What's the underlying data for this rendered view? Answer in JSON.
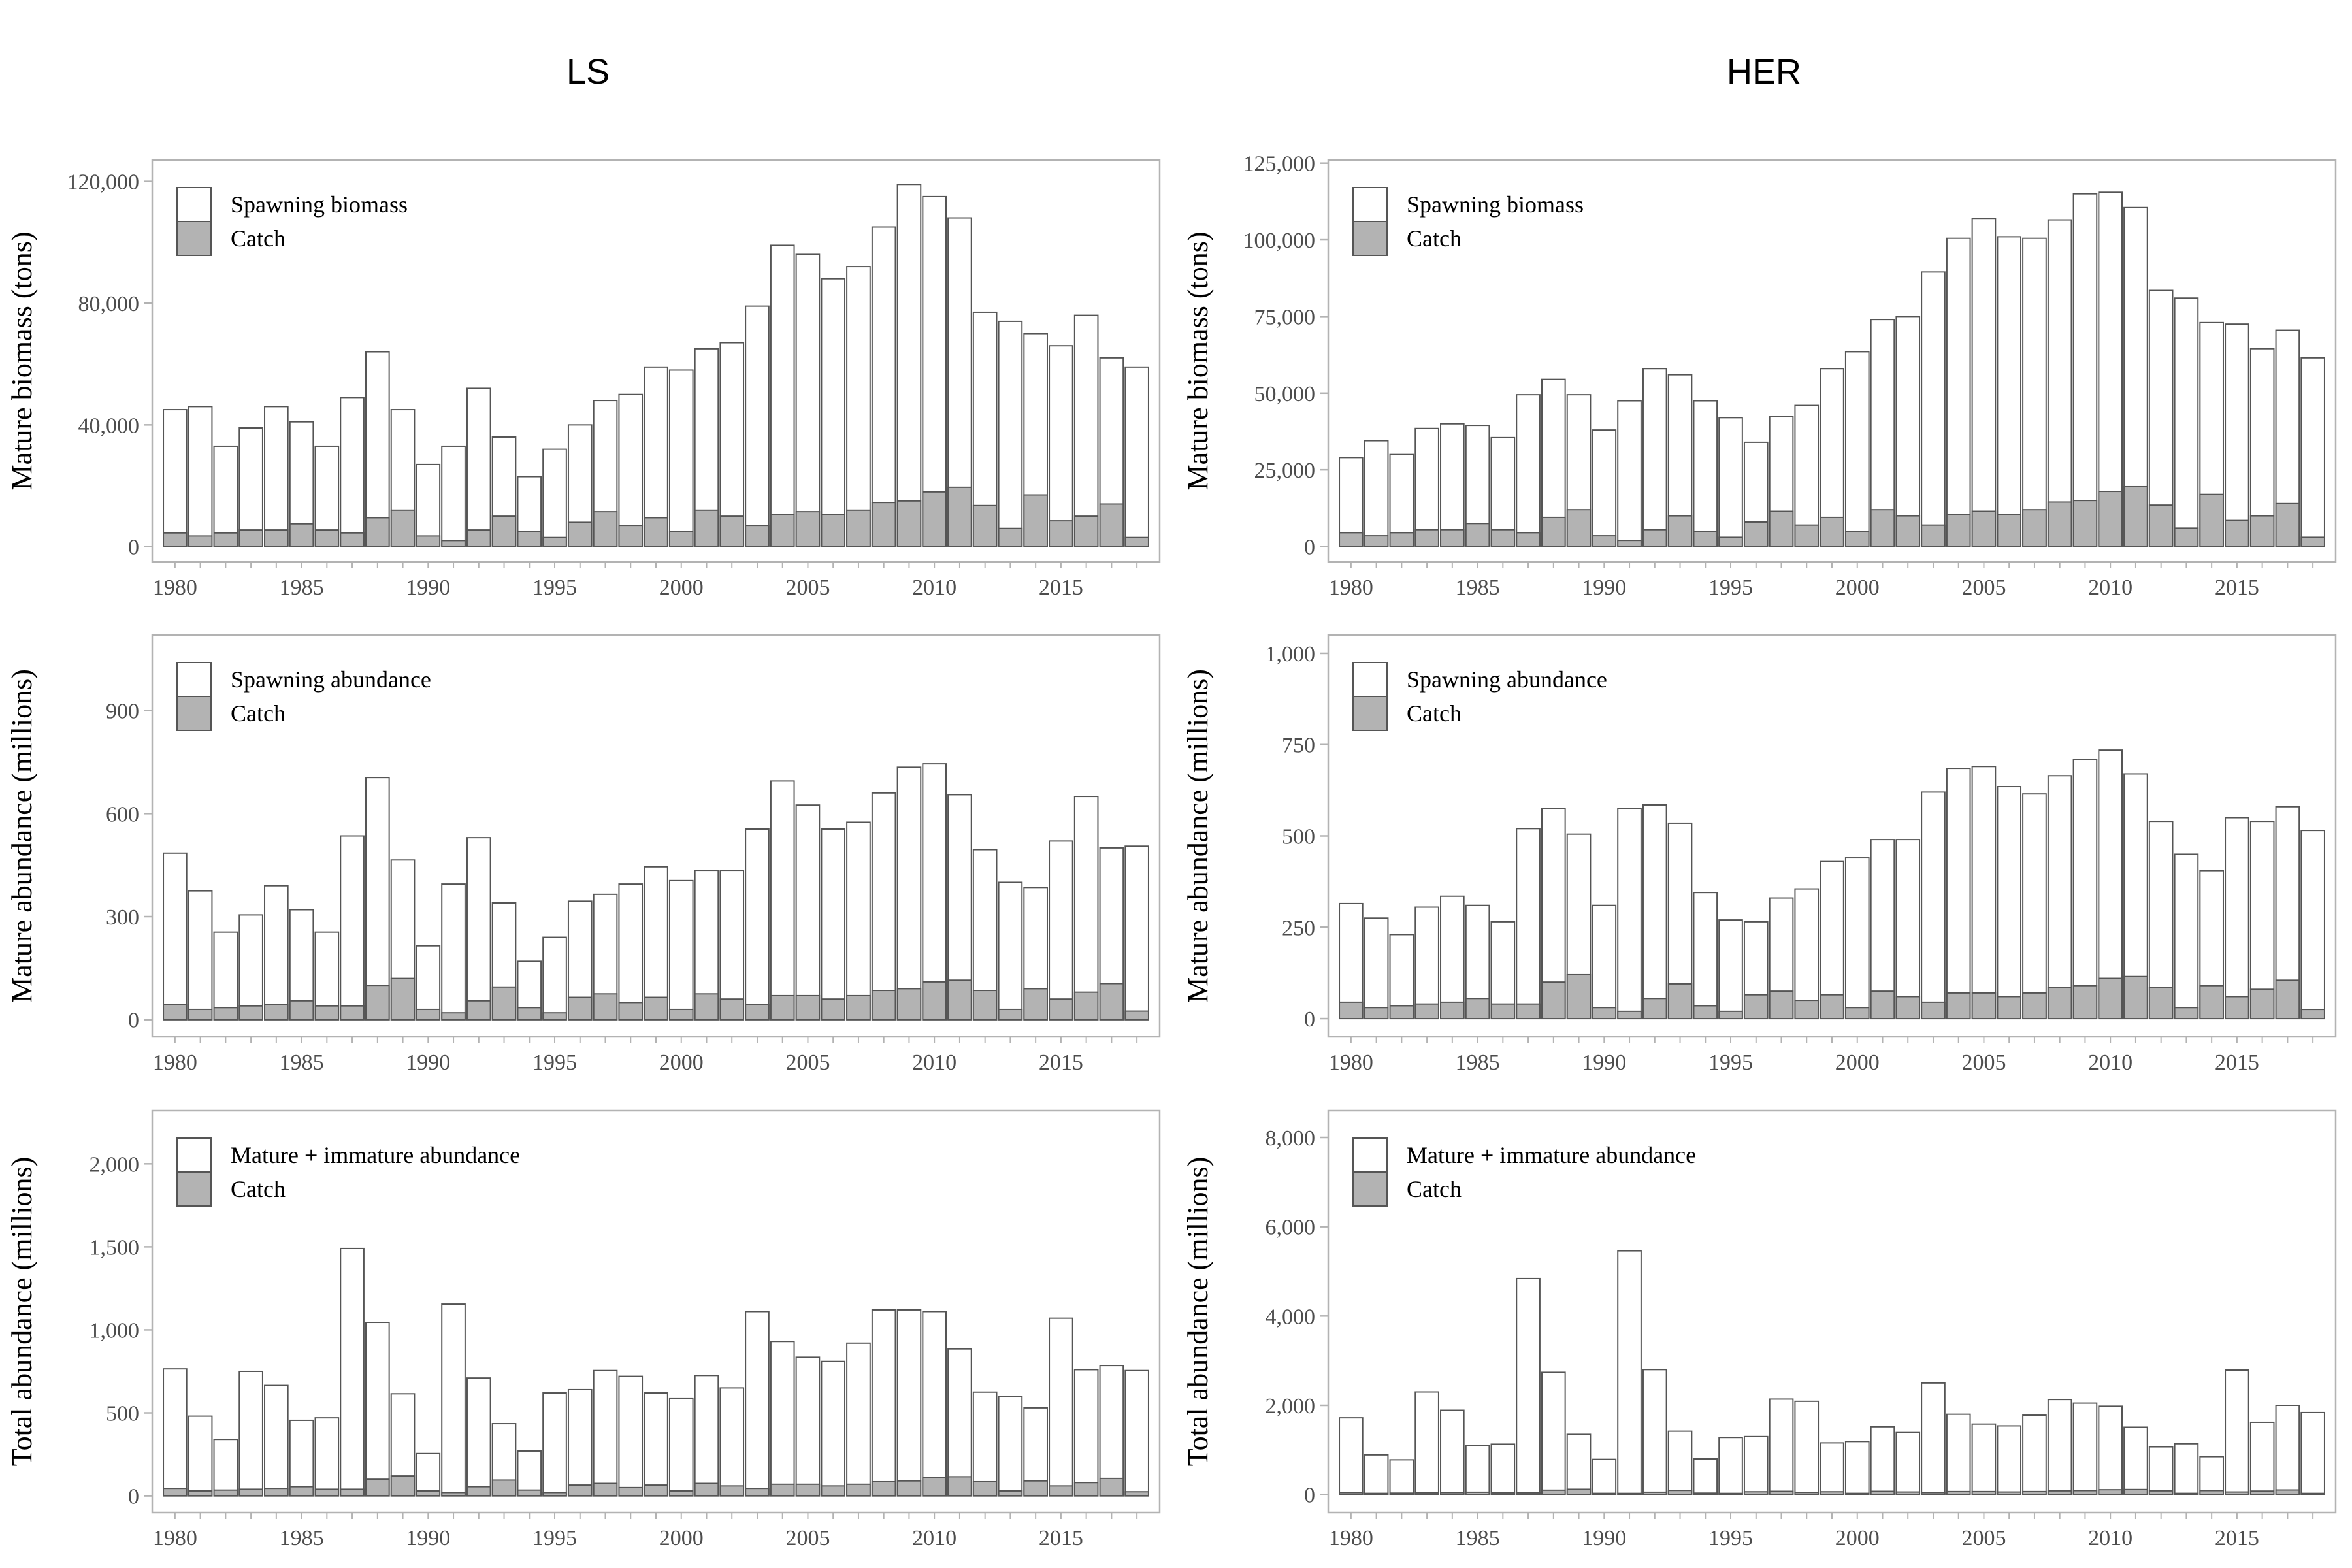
{
  "column_titles": [
    "LS",
    "HER"
  ],
  "colors": {
    "bar_fill": "#ffffff",
    "bar_stroke": "#555555",
    "catch_fill": "#b3b3b3",
    "panel_border": "#b3b3b3",
    "tick_text": "#4d4d4d"
  },
  "chart_data": [
    {
      "type": "bar",
      "panel": "LS-biomass",
      "title": "LS",
      "ylabel": "Mature biomass (tons)",
      "xlabel": "",
      "ylim": [
        -5000,
        127000
      ],
      "yticks": [
        0,
        40000,
        80000,
        120000
      ],
      "ytick_labels": [
        "0",
        "40,000",
        "80,000",
        "120,000"
      ],
      "xticks": [
        1980,
        1985,
        1990,
        1995,
        2000,
        2005,
        2010,
        2015
      ],
      "legend": [
        "Spawning biomass",
        "Catch"
      ],
      "legend_position": "top-left",
      "grid": false,
      "x": [
        1980,
        1981,
        1982,
        1983,
        1984,
        1985,
        1986,
        1987,
        1988,
        1989,
        1990,
        1991,
        1992,
        1993,
        1994,
        1995,
        1996,
        1997,
        1998,
        1999,
        2000,
        2001,
        2002,
        2003,
        2004,
        2005,
        2006,
        2007,
        2008,
        2009,
        2010,
        2011,
        2012,
        2013,
        2014,
        2015,
        2016,
        2017,
        2018
      ],
      "series": [
        {
          "name": "Spawning biomass",
          "values": [
            45000,
            46000,
            33000,
            39000,
            46000,
            41000,
            33000,
            49000,
            64000,
            45000,
            27000,
            33000,
            52000,
            36000,
            23000,
            32000,
            40000,
            48000,
            50000,
            59000,
            58000,
            65000,
            67000,
            79000,
            99000,
            96000,
            88000,
            92000,
            105000,
            119000,
            115000,
            108000,
            77000,
            74000,
            70000,
            66000,
            76000,
            62000,
            59000
          ]
        },
        {
          "name": "Catch",
          "values": [
            4500,
            3500,
            4500,
            5500,
            5500,
            7500,
            5500,
            4500,
            9500,
            12000,
            3500,
            2000,
            5500,
            10000,
            5000,
            3000,
            8000,
            11500,
            7000,
            9500,
            5000,
            12000,
            10000,
            7000,
            10500,
            11500,
            10500,
            12000,
            14500,
            15000,
            18000,
            19500,
            13500,
            6000,
            17000,
            8500,
            10000,
            14000,
            3000
          ]
        }
      ]
    },
    {
      "type": "bar",
      "panel": "HER-biomass",
      "title": "HER",
      "ylabel": "Mature biomass (tons)",
      "xlabel": "",
      "ylim": [
        -5000,
        126000
      ],
      "yticks": [
        0,
        25000,
        50000,
        75000,
        100000,
        125000
      ],
      "ytick_labels": [
        "0",
        "25,000",
        "50,000",
        "75,000",
        "100,000",
        "125,000"
      ],
      "xticks": [
        1980,
        1985,
        1990,
        1995,
        2000,
        2005,
        2010,
        2015
      ],
      "legend": [
        "Spawning biomass",
        "Catch"
      ],
      "legend_position": "top-left",
      "grid": false,
      "x": [
        1980,
        1981,
        1982,
        1983,
        1984,
        1985,
        1986,
        1987,
        1988,
        1989,
        1990,
        1991,
        1992,
        1993,
        1994,
        1995,
        1996,
        1997,
        1998,
        1999,
        2000,
        2001,
        2002,
        2003,
        2004,
        2005,
        2006,
        2007,
        2008,
        2009,
        2010,
        2011,
        2012,
        2013,
        2014,
        2015,
        2016,
        2017,
        2018
      ],
      "series": [
        {
          "name": "Spawning biomass",
          "values": [
            29000,
            34500,
            30000,
            38500,
            40000,
            39500,
            35500,
            49500,
            54500,
            49500,
            38000,
            47500,
            58000,
            56000,
            47500,
            42000,
            34000,
            42500,
            46000,
            58000,
            63500,
            74000,
            75000,
            89500,
            100500,
            107000,
            101000,
            100500,
            106500,
            115000,
            115500,
            110500,
            83500,
            81000,
            73000,
            72500,
            64500,
            70500,
            61500
          ]
        },
        {
          "name": "Catch",
          "values": [
            4500,
            3500,
            4500,
            5500,
            5500,
            7500,
            5500,
            4500,
            9500,
            12000,
            3500,
            2000,
            5500,
            10000,
            5000,
            3000,
            8000,
            11500,
            7000,
            9500,
            5000,
            12000,
            10000,
            7000,
            10500,
            11500,
            10500,
            12000,
            14500,
            15000,
            18000,
            19500,
            13500,
            6000,
            17000,
            8500,
            10000,
            14000,
            3000
          ]
        }
      ]
    },
    {
      "type": "bar",
      "panel": "LS-abundance",
      "title": "",
      "ylabel": "Mature abundance (millions)",
      "xlabel": "",
      "ylim": [
        -50,
        1120
      ],
      "yticks": [
        0,
        300,
        600,
        900
      ],
      "ytick_labels": [
        "0",
        "300",
        "600",
        "900"
      ],
      "xticks": [
        1980,
        1985,
        1990,
        1995,
        2000,
        2005,
        2010,
        2015
      ],
      "legend": [
        "Spawning abundance",
        "Catch"
      ],
      "legend_position": "top-left",
      "grid": false,
      "x": [
        1980,
        1981,
        1982,
        1983,
        1984,
        1985,
        1986,
        1987,
        1988,
        1989,
        1990,
        1991,
        1992,
        1993,
        1994,
        1995,
        1996,
        1997,
        1998,
        1999,
        2000,
        2001,
        2002,
        2003,
        2004,
        2005,
        2006,
        2007,
        2008,
        2009,
        2010,
        2011,
        2012,
        2013,
        2014,
        2015,
        2016,
        2017,
        2018
      ],
      "series": [
        {
          "name": "Spawning abundance",
          "values": [
            485,
            375,
            255,
            305,
            390,
            320,
            255,
            535,
            705,
            465,
            215,
            395,
            530,
            340,
            170,
            240,
            345,
            365,
            395,
            445,
            405,
            435,
            435,
            555,
            695,
            625,
            555,
            575,
            660,
            735,
            745,
            655,
            495,
            400,
            385,
            520,
            650,
            500,
            505
          ]
        },
        {
          "name": "Catch",
          "values": [
            45,
            30,
            35,
            40,
            45,
            55,
            40,
            40,
            100,
            120,
            30,
            20,
            55,
            95,
            35,
            20,
            65,
            75,
            50,
            65,
            30,
            75,
            60,
            45,
            70,
            70,
            60,
            70,
            85,
            90,
            110,
            115,
            85,
            30,
            90,
            60,
            80,
            105,
            25
          ]
        }
      ]
    },
    {
      "type": "bar",
      "panel": "HER-abundance",
      "title": "",
      "ylabel": "Mature abundance (millions)",
      "xlabel": "",
      "ylim": [
        -50,
        1050
      ],
      "yticks": [
        0,
        250,
        500,
        750,
        1000
      ],
      "ytick_labels": [
        "0",
        "250",
        "500",
        "750",
        "1,000"
      ],
      "xticks": [
        1980,
        1985,
        1990,
        1995,
        2000,
        2005,
        2010,
        2015
      ],
      "legend": [
        "Spawning abundance",
        "Catch"
      ],
      "legend_position": "top-left",
      "grid": false,
      "x": [
        1980,
        1981,
        1982,
        1983,
        1984,
        1985,
        1986,
        1987,
        1988,
        1989,
        1990,
        1991,
        1992,
        1993,
        1994,
        1995,
        1996,
        1997,
        1998,
        1999,
        2000,
        2001,
        2002,
        2003,
        2004,
        2005,
        2006,
        2007,
        2008,
        2009,
        2010,
        2011,
        2012,
        2013,
        2014,
        2015,
        2016,
        2017,
        2018
      ],
      "series": [
        {
          "name": "Spawning abundance",
          "values": [
            315,
            275,
            230,
            305,
            335,
            310,
            265,
            520,
            575,
            505,
            310,
            575,
            585,
            535,
            345,
            270,
            265,
            330,
            355,
            430,
            440,
            490,
            490,
            620,
            685,
            690,
            635,
            615,
            665,
            710,
            735,
            670,
            540,
            450,
            405,
            550,
            540,
            580,
            515
          ]
        },
        {
          "name": "Catch",
          "values": [
            45,
            30,
            35,
            40,
            45,
            55,
            40,
            40,
            100,
            120,
            30,
            20,
            55,
            95,
            35,
            20,
            65,
            75,
            50,
            65,
            30,
            75,
            60,
            45,
            70,
            70,
            60,
            70,
            85,
            90,
            110,
            115,
            85,
            30,
            90,
            60,
            80,
            105,
            25
          ]
        }
      ]
    },
    {
      "type": "bar",
      "panel": "LS-total",
      "title": "",
      "ylabel": "Total abundance (millions)",
      "xlabel": "",
      "ylim": [
        -100,
        2320
      ],
      "yticks": [
        0,
        500,
        1000,
        1500,
        2000
      ],
      "ytick_labels": [
        "0",
        "500",
        "1,000",
        "1,500",
        "2,000"
      ],
      "xticks": [
        1980,
        1985,
        1990,
        1995,
        2000,
        2005,
        2010,
        2015
      ],
      "legend": [
        "Mature + immature abundance",
        "Catch"
      ],
      "legend_position": "top-left",
      "grid": false,
      "x": [
        1980,
        1981,
        1982,
        1983,
        1984,
        1985,
        1986,
        1987,
        1988,
        1989,
        1990,
        1991,
        1992,
        1993,
        1994,
        1995,
        1996,
        1997,
        1998,
        1999,
        2000,
        2001,
        2002,
        2003,
        2004,
        2005,
        2006,
        2007,
        2008,
        2009,
        2010,
        2011,
        2012,
        2013,
        2014,
        2015,
        2016,
        2017,
        2018
      ],
      "series": [
        {
          "name": "Mature + immature abundance",
          "values": [
            765,
            480,
            340,
            750,
            665,
            455,
            470,
            1490,
            1045,
            615,
            255,
            1155,
            710,
            435,
            270,
            620,
            640,
            755,
            720,
            620,
            585,
            725,
            650,
            1110,
            930,
            835,
            810,
            920,
            1120,
            1120,
            1110,
            885,
            625,
            600,
            530,
            1070,
            760,
            785,
            755
          ]
        },
        {
          "name": "Catch",
          "values": [
            45,
            30,
            35,
            40,
            45,
            55,
            40,
            40,
            100,
            120,
            30,
            20,
            55,
            95,
            35,
            20,
            65,
            75,
            50,
            65,
            30,
            75,
            60,
            45,
            70,
            70,
            60,
            70,
            85,
            90,
            110,
            115,
            85,
            30,
            90,
            60,
            80,
            105,
            25
          ]
        }
      ]
    },
    {
      "type": "bar",
      "panel": "HER-total",
      "title": "",
      "ylabel": "Total abundance (millions)",
      "xlabel": "",
      "ylim": [
        -400,
        8600
      ],
      "yticks": [
        0,
        2000,
        4000,
        6000,
        8000
      ],
      "ytick_labels": [
        "0",
        "2,000",
        "4,000",
        "6,000",
        "8,000"
      ],
      "xticks": [
        1980,
        1985,
        1990,
        1995,
        2000,
        2005,
        2010,
        2015
      ],
      "legend": [
        "Mature + immature abundance",
        "Catch"
      ],
      "legend_position": "top-left",
      "grid": false,
      "x": [
        1980,
        1981,
        1982,
        1983,
        1984,
        1985,
        1986,
        1987,
        1988,
        1989,
        1990,
        1991,
        1992,
        1993,
        1994,
        1995,
        1996,
        1997,
        1998,
        1999,
        2000,
        2001,
        2002,
        2003,
        2004,
        2005,
        2006,
        2007,
        2008,
        2009,
        2010,
        2011,
        2012,
        2013,
        2014,
        2015,
        2016,
        2017,
        2018
      ],
      "series": [
        {
          "name": "Mature + immature abundance",
          "values": [
            1720,
            890,
            780,
            2300,
            1890,
            1100,
            1130,
            4840,
            2740,
            1350,
            790,
            5460,
            2800,
            1420,
            800,
            1280,
            1300,
            2140,
            2090,
            1160,
            1190,
            1520,
            1390,
            2500,
            1800,
            1580,
            1540,
            1780,
            2130,
            2050,
            1980,
            1510,
            1070,
            1140,
            850,
            2790,
            1620,
            2000,
            1840
          ]
        },
        {
          "name": "Catch",
          "values": [
            45,
            30,
            35,
            40,
            45,
            55,
            40,
            40,
            100,
            120,
            30,
            20,
            55,
            95,
            35,
            20,
            65,
            75,
            50,
            65,
            30,
            75,
            60,
            45,
            70,
            70,
            60,
            70,
            85,
            90,
            110,
            115,
            85,
            30,
            90,
            60,
            80,
            105,
            25
          ]
        }
      ]
    }
  ]
}
